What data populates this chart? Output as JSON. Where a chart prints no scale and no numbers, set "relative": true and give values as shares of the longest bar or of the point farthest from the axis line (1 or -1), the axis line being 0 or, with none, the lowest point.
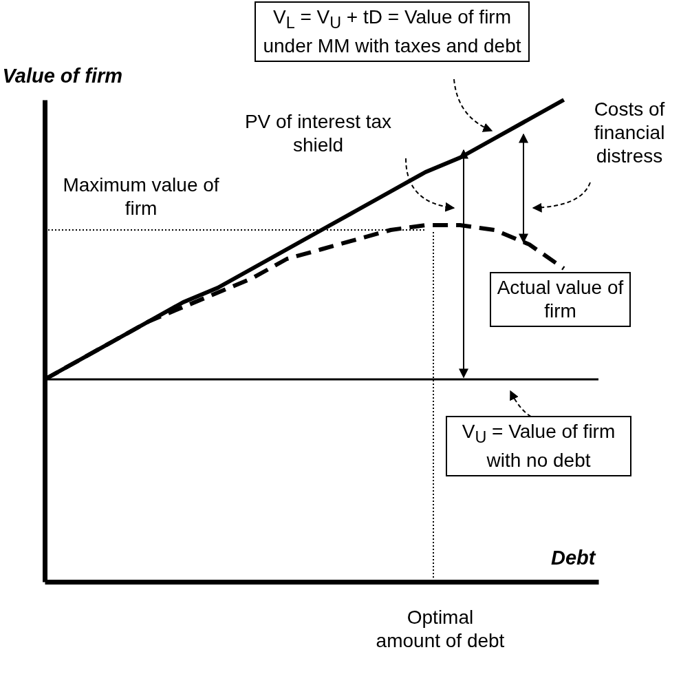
{
  "chart_data": {
    "type": "line",
    "relative": true,
    "xlabel": "Debt",
    "ylabel": "Value of firm",
    "tick_labels": false,
    "grid": false,
    "categories": [
      null,
      null,
      null,
      null,
      null,
      null,
      null,
      null,
      null,
      null,
      null,
      null,
      null,
      null,
      null,
      null,
      null
    ],
    "series": [
      {
        "color": "#000000",
        "line_style": "solid",
        "values": [
          0.42,
          0.46,
          0.5,
          0.54,
          0.58,
          0.61,
          0.65,
          0.69,
          0.73,
          0.77,
          0.81,
          0.85,
          0.88,
          0.92,
          0.96,
          1.0,
          null
        ]
      },
      {
        "color": "#000000",
        "line_style": "solid",
        "values": [
          0.42,
          0.42,
          0.42,
          0.42,
          0.42,
          0.42,
          0.42,
          0.42,
          0.42,
          0.42,
          0.42,
          0.42,
          0.42,
          0.42,
          0.42,
          0.42,
          0.42
        ]
      },
      {
        "color": "#000000",
        "line_style": "dashed",
        "values": [
          0.42,
          0.46,
          0.5,
          0.54,
          0.57,
          0.6,
          0.63,
          0.67,
          0.69,
          0.71,
          0.73,
          0.74,
          0.74,
          0.73,
          0.7,
          0.65,
          null
        ]
      },
      {
        "color": "#000000",
        "line_style": "dotted",
        "values": [
          0.73,
          0.73,
          0.73,
          0.73,
          0.73,
          0.73,
          0.73,
          0.73,
          0.73,
          0.73,
          0.73,
          0.73,
          null,
          null,
          null,
          null,
          null
        ]
      }
    ],
    "annotations": [
      "V$_{L}$ = V$_{U}$ + tD = Value of firm under MM with taxes and debt",
      "PV of interest tax shield",
      "Costs of financial distress",
      "Maximum value of firm",
      "Actual value of firm",
      "V$_{U}$ = Value of firm with no debt",
      "Optimal amount of debt"
    ]
  }
}
